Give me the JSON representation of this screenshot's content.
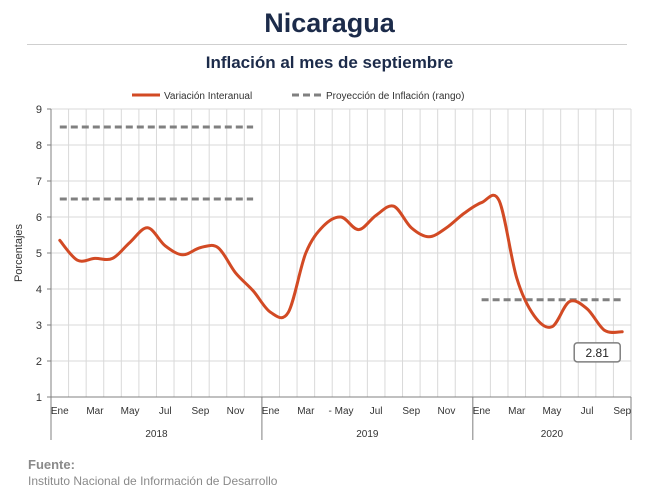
{
  "header": {
    "title": "Nicaragua",
    "subtitle": "Inflación al mes de septiembre"
  },
  "source": {
    "label": "Fuente:",
    "text": "Instituto Nacional de Información de  Desarrollo"
  },
  "colors": {
    "series": "#d24a24",
    "projection": "#808080",
    "grid": "#d9d9d9",
    "callout_border": "#7f7f7f"
  },
  "chart_data": {
    "type": "line",
    "title": "Inflación al mes de septiembre",
    "ylabel": "Porcentajes",
    "xlabel": "",
    "ylim": [
      1,
      9
    ],
    "yticks": [
      1,
      2,
      3,
      4,
      5,
      6,
      7,
      8,
      9
    ],
    "grid": true,
    "legend_position": "top-center",
    "x_month_labels": [
      "Ene",
      "Mar",
      "May",
      "Jul",
      "Sep",
      "Nov",
      "Ene",
      "Mar",
      "- May",
      "Jul",
      "Sep",
      "Nov",
      "Ene",
      "Mar",
      "May",
      "Jul",
      "Sep"
    ],
    "x_month_label_index": [
      0,
      2,
      4,
      6,
      8,
      10,
      12,
      14,
      16,
      18,
      20,
      22,
      24,
      26,
      28,
      30,
      32
    ],
    "years": [
      {
        "label": "2018",
        "start": 0,
        "end": 11
      },
      {
        "label": "2019",
        "start": 12,
        "end": 23
      },
      {
        "label": "2020",
        "start": 24,
        "end": 32
      }
    ],
    "series": [
      {
        "name": "Variación Interanual",
        "values": [
          5.35,
          4.8,
          4.85,
          4.85,
          5.3,
          5.7,
          5.2,
          4.95,
          5.15,
          5.15,
          4.45,
          3.95,
          3.35,
          3.35,
          5.0,
          5.75,
          6.0,
          5.65,
          6.05,
          6.3,
          5.7,
          5.45,
          5.7,
          6.1,
          6.4,
          6.45,
          4.3,
          3.25,
          2.95,
          3.65,
          3.45,
          2.85,
          2.81
        ]
      }
    ],
    "projection": {
      "name": "Proyección de Inflación (rango)",
      "segments": [
        {
          "x_start": 0,
          "x_end": 11,
          "y": 8.5
        },
        {
          "x_start": 0,
          "x_end": 11,
          "y": 6.5
        },
        {
          "x_start": 24,
          "x_end": 32,
          "y": 3.7
        }
      ]
    },
    "callout": {
      "index": 32,
      "text": "2.81"
    }
  }
}
